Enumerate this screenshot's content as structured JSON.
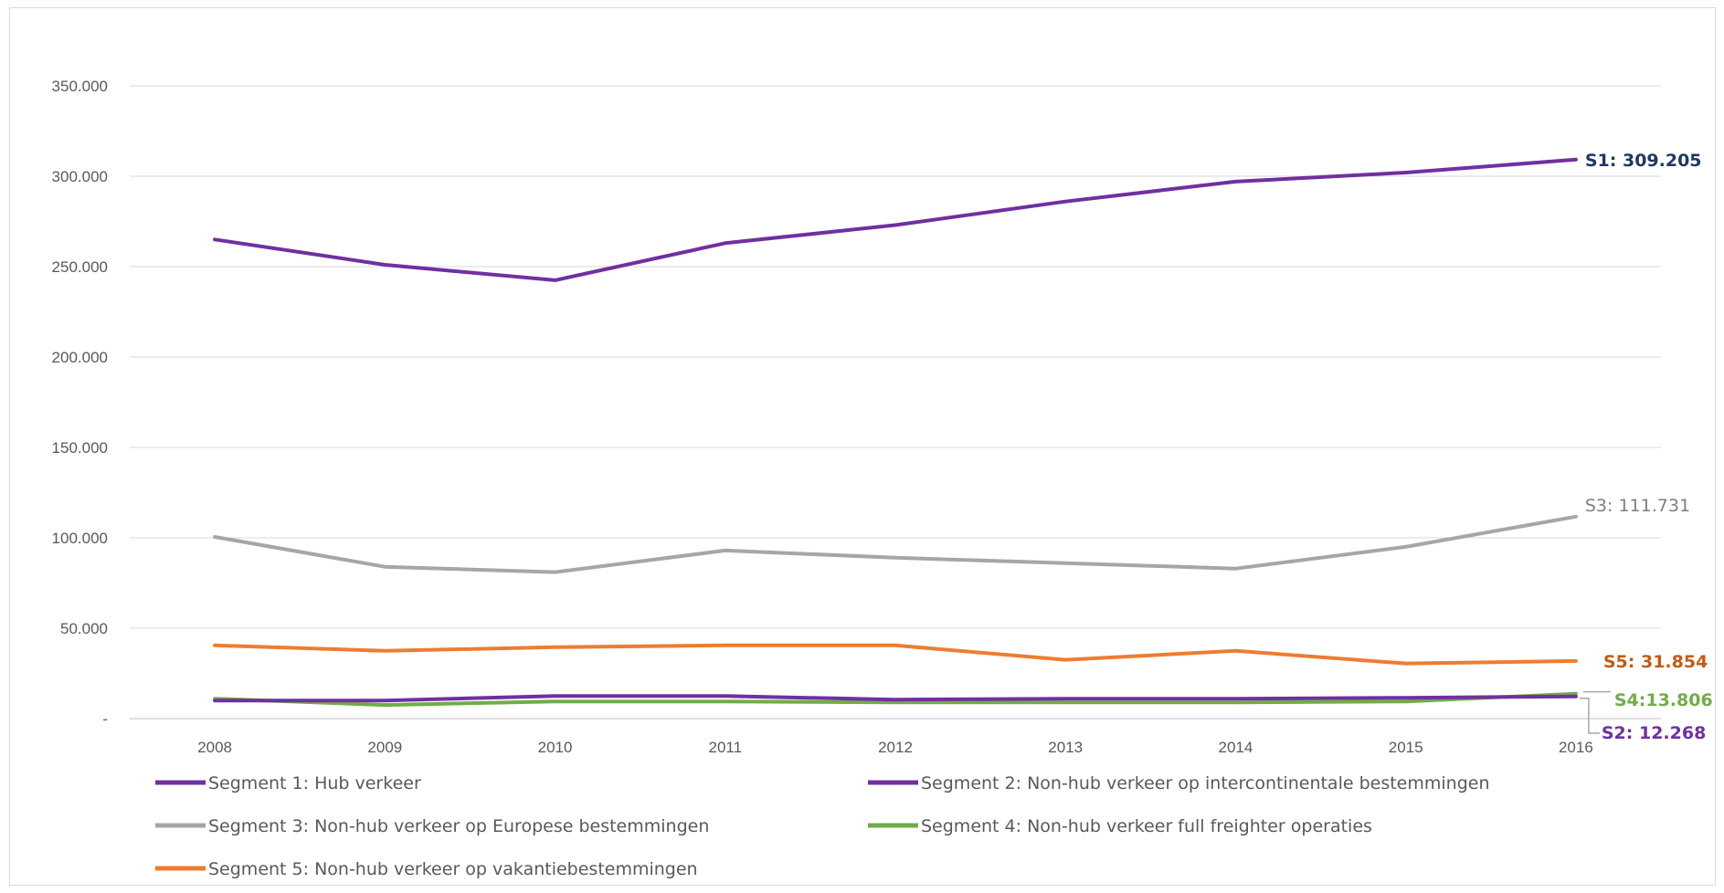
{
  "chart_data": {
    "type": "line",
    "title": "",
    "xlabel": "",
    "ylabel": "",
    "categories": [
      "2008",
      "2009",
      "2010",
      "2011",
      "2012",
      "2013",
      "2014",
      "2015",
      "2016"
    ],
    "ylim": [
      0,
      350000
    ],
    "y_ticks": [
      0,
      50000,
      100000,
      150000,
      200000,
      250000,
      300000,
      350000
    ],
    "y_tick_labels": [
      "-",
      "50.000",
      "100.000",
      "150.000",
      "200.000",
      "250.000",
      "300.000",
      "350.000"
    ],
    "grid": "horizontal",
    "legend_position": "bottom",
    "series": [
      {
        "name": "Segment 1: Hub verkeer",
        "color": "#7030a0",
        "end_label": "S1: 309.205",
        "values": [
          265000,
          251000,
          242500,
          263000,
          273000,
          286000,
          297000,
          302000,
          309205
        ]
      },
      {
        "name": "Segment 2: Non-hub verkeer op intercontinentale bestemmingen",
        "color": "#7030a0",
        "end_label": "S2: 12.268",
        "values": [
          10000,
          10000,
          12500,
          12500,
          10500,
          11000,
          11000,
          11500,
          12268
        ]
      },
      {
        "name": "Segment 3: Non-hub verkeer op Europese bestemmingen",
        "color": "#a6a6a6",
        "end_label": "S3: 111.731",
        "values": [
          100500,
          84000,
          81000,
          93000,
          89000,
          86000,
          83000,
          95000,
          111731
        ]
      },
      {
        "name": "Segment 4: Non-hub verkeer full freighter operaties",
        "color": "#70ad47",
        "end_label": "S4:13.806",
        "values": [
          11000,
          7500,
          9500,
          9500,
          9000,
          9000,
          9000,
          9500,
          13806
        ]
      },
      {
        "name": "Segment 5: Non-hub verkeer op vakantiebestemmingen",
        "color": "#ed7d31",
        "end_label": "S5: 31.854",
        "values": [
          40500,
          37500,
          39500,
          40500,
          40500,
          32500,
          37500,
          30500,
          31854
        ]
      }
    ],
    "end_label_colors": {
      "S1": "#1f3864",
      "S2": "#7030a0",
      "S3": "#7f7f7f",
      "S4": "#70ad47",
      "S5": "#c55a11"
    }
  }
}
